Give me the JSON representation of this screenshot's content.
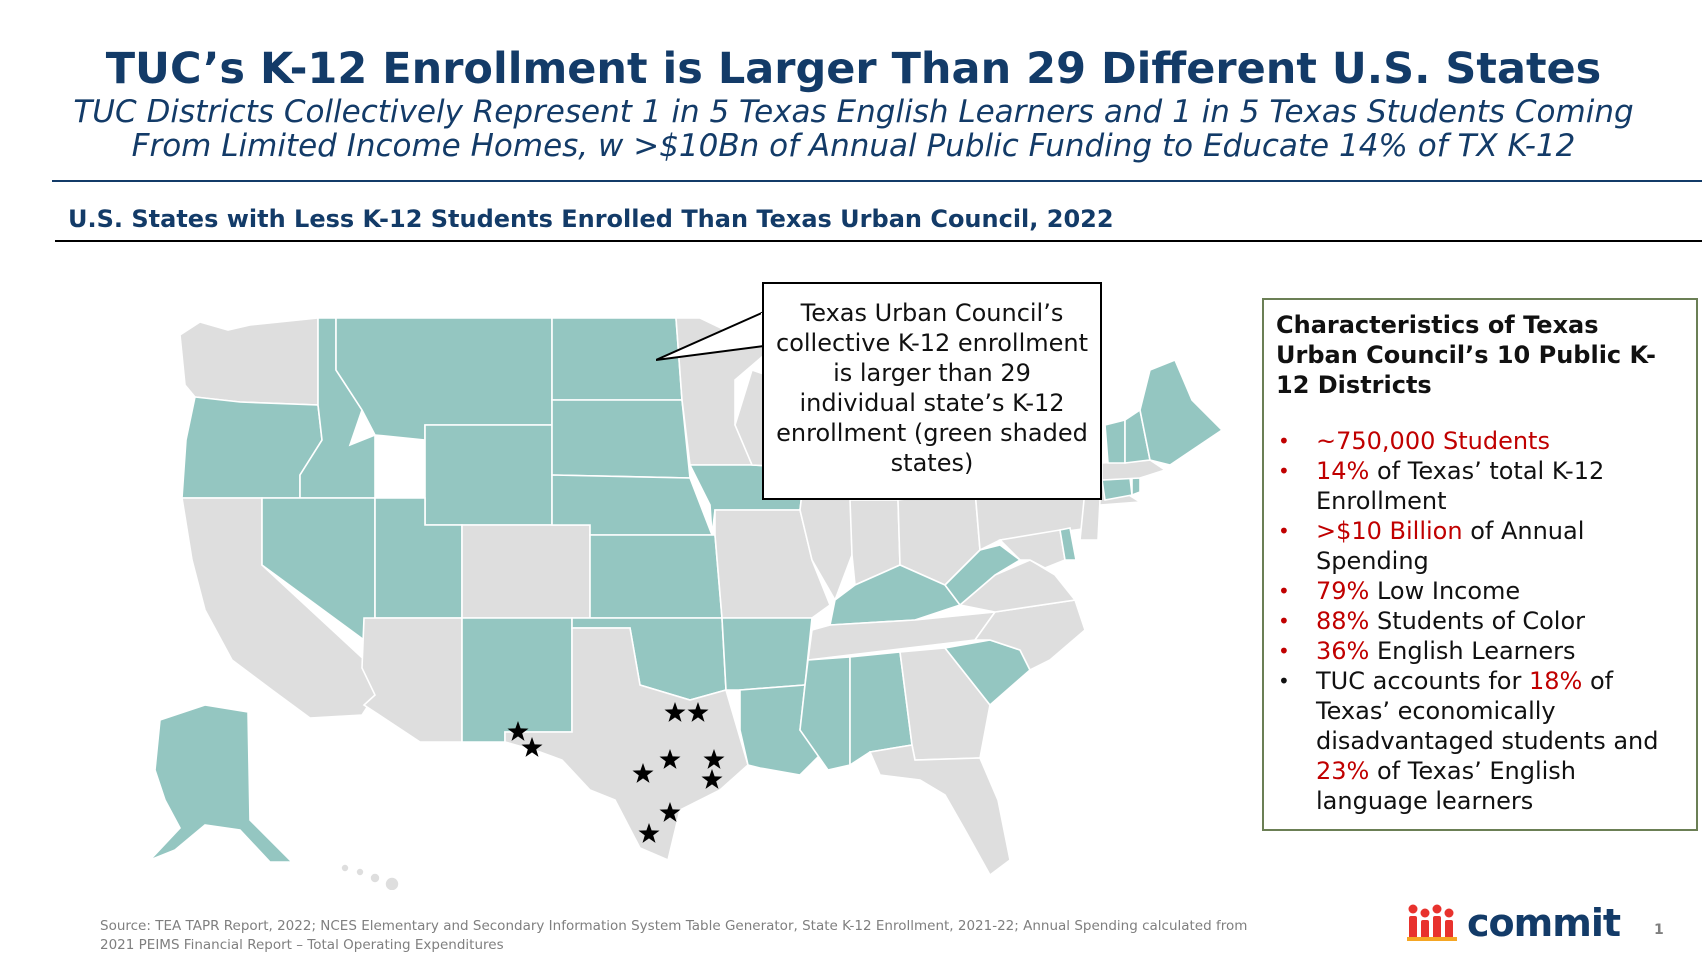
{
  "header": {
    "title": "TUC’s K-12 Enrollment is Larger Than 29 Different U.S. States",
    "subtitle_line1": "TUC Districts Collectively Represent 1 in 5 Texas English Learners and 1 in 5 Texas Students Coming",
    "subtitle_line2": "From Limited Income Homes, w >$10Bn of Annual Public Funding to Educate 14% of TX K-12"
  },
  "section": {
    "heading": "U.S. States with Less K-12 Students Enrolled Than Texas Urban Council, 2022"
  },
  "map": {
    "colors": {
      "highlighted": "#94c6c1",
      "other": "#dedede",
      "marker": "#000000"
    },
    "highlighted_states_label": "green shaded states",
    "marker_icon": "star-icon",
    "marker_count": 10
  },
  "callout": {
    "text": "Texas Urban Council’s collective K-12 enrollment is larger than 29 individual state’s K-12 enrollment (green shaded states)"
  },
  "panel": {
    "title": "Characteristics of Texas Urban Council’s 10 Public K-12 Districts",
    "items": [
      {
        "highlight": "~750,000 Students",
        "text": ""
      },
      {
        "highlight": "14%",
        "text": " of Texas’ total K-12 Enrollment"
      },
      {
        "highlight": ">$10 Billion",
        "text": " of Annual Spending"
      },
      {
        "highlight": "79%",
        "text": " Low Income"
      },
      {
        "highlight": "88%",
        "text": " Students of Color"
      },
      {
        "highlight": "36%",
        "text": " English Learners"
      }
    ],
    "last_item": {
      "part1": "TUC accounts for ",
      "highlight1": "18%",
      "part2": " of Texas’ economically disadvantaged students and ",
      "highlight2": "23%",
      "part3": " of Texas’ English language learners"
    },
    "accent_color": "#c00000"
  },
  "footer": {
    "source_line1": "Source: TEA TAPR Report, 2022; NCES Elementary and Secondary Information System Table Generator, State K-12 Enrollment, 2021-22; Annual Spending calculated from",
    "source_line2": "2021 PEIMS Financial Report – Total Operating Expenditures",
    "logo_text": "commit",
    "page_number": "1"
  }
}
